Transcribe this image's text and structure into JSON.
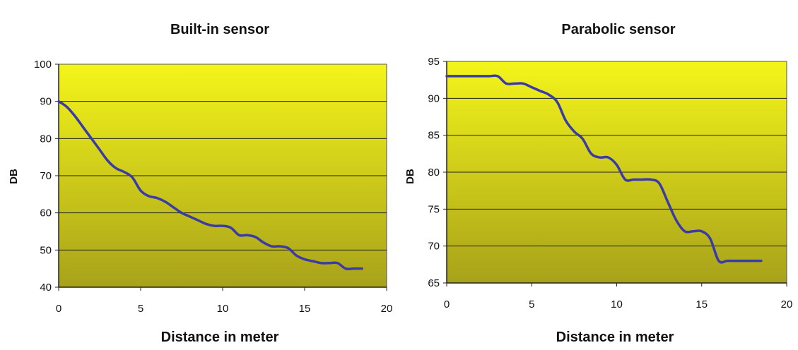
{
  "chart_data": [
    {
      "type": "line",
      "title": "Built-in sensor",
      "xlabel": "Distance in meter",
      "ylabel": "DB",
      "xlim": [
        0,
        20
      ],
      "ylim": [
        40,
        100
      ],
      "xticks": [
        "0",
        "5",
        "10",
        "15",
        "20"
      ],
      "yticks": [
        "40",
        "50",
        "60",
        "70",
        "80",
        "90",
        "100"
      ],
      "grid": "horizontal",
      "legend": "none",
      "colors": {
        "line": "#3a3aa8",
        "plot_top": "#f4f51a",
        "plot_bottom": "#a8a21a"
      },
      "series": [
        {
          "x": [
            0,
            0.5,
            1,
            1.5,
            2,
            2.5,
            3,
            3.5,
            4,
            4.5,
            5,
            5.5,
            6,
            6.5,
            7,
            7.5,
            8,
            8.5,
            9,
            9.5,
            10,
            10.5,
            11,
            11.5,
            12,
            12.5,
            13,
            13.5,
            14,
            14.5,
            15,
            15.5,
            16,
            16.5,
            17,
            17.5,
            18,
            18.5
          ],
          "values": [
            90,
            88.5,
            86,
            83,
            80,
            77,
            74,
            72,
            71,
            69.5,
            66,
            64.5,
            64,
            63,
            61.5,
            60,
            59,
            58,
            57,
            56.5,
            56.5,
            56,
            54,
            54,
            53.5,
            52,
            51,
            51,
            50.5,
            48.5,
            47.5,
            47,
            46.5,
            46.5,
            46.5,
            45,
            45,
            45
          ]
        }
      ]
    },
    {
      "type": "line",
      "title": "Parabolic sensor",
      "xlabel": "Distance in meter",
      "ylabel": "DB",
      "xlim": [
        0,
        20
      ],
      "ylim": [
        65,
        95
      ],
      "xticks": [
        "0",
        "5",
        "10",
        "15",
        "20"
      ],
      "yticks": [
        "65",
        "70",
        "75",
        "80",
        "85",
        "90",
        "95"
      ],
      "grid": "horizontal",
      "legend": "none",
      "colors": {
        "line": "#3a3aa8",
        "plot_top": "#f4f51a",
        "plot_bottom": "#a8a21a"
      },
      "series": [
        {
          "x": [
            0,
            0.5,
            1,
            1.5,
            2,
            2.5,
            3,
            3.5,
            4,
            4.5,
            5,
            5.5,
            6,
            6.5,
            7,
            7.5,
            8,
            8.5,
            9,
            9.5,
            10,
            10.5,
            11,
            11.5,
            12,
            12.5,
            13,
            13.5,
            14,
            14.5,
            15,
            15.5,
            16,
            16.5,
            17,
            17.5,
            18,
            18.5
          ],
          "values": [
            93,
            93,
            93,
            93,
            93,
            93,
            93,
            92,
            92,
            92,
            91.5,
            91,
            90.5,
            89.5,
            87,
            85.5,
            84.5,
            82.5,
            82,
            82,
            81,
            79,
            79,
            79,
            79,
            78.5,
            76,
            73.5,
            72,
            72,
            72,
            71,
            68,
            68,
            68,
            68,
            68,
            68
          ]
        }
      ]
    }
  ]
}
